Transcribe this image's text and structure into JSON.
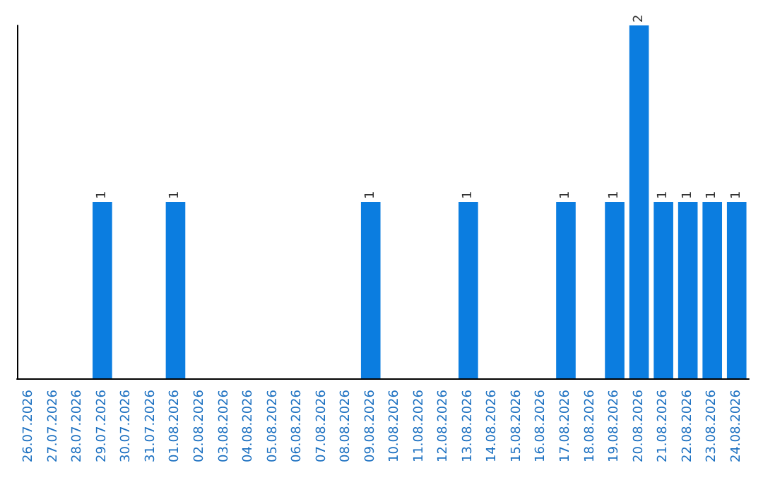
{
  "chart_data": {
    "type": "bar",
    "categories": [
      "26.07.2026",
      "27.07.2026",
      "28.07.2026",
      "29.07.2026",
      "30.07.2026",
      "31.07.2026",
      "01.08.2026",
      "02.08.2026",
      "03.08.2026",
      "04.08.2026",
      "05.08.2026",
      "06.08.2026",
      "07.08.2026",
      "08.08.2026",
      "09.08.2026",
      "10.08.2026",
      "11.08.2026",
      "12.08.2026",
      "13.08.2026",
      "14.08.2026",
      "15.08.2026",
      "16.08.2026",
      "17.08.2026",
      "18.08.2026",
      "19.08.2026",
      "20.08.2026",
      "21.08.2026",
      "22.08.2026",
      "23.08.2026",
      "24.08.2026"
    ],
    "values": [
      0,
      0,
      0,
      1,
      0,
      0,
      1,
      0,
      0,
      0,
      0,
      0,
      0,
      0,
      1,
      0,
      0,
      0,
      1,
      0,
      0,
      0,
      1,
      0,
      1,
      2,
      1,
      1,
      1,
      1
    ],
    "value_labels": [
      null,
      null,
      null,
      "1",
      null,
      null,
      "1",
      null,
      null,
      null,
      null,
      null,
      null,
      null,
      "1",
      null,
      null,
      null,
      "1",
      null,
      null,
      null,
      "1",
      null,
      "1",
      "2",
      "1",
      "1",
      "1",
      "1"
    ],
    "color": "#0b7de0",
    "tick_labels": "x",
    "grid": false
  }
}
